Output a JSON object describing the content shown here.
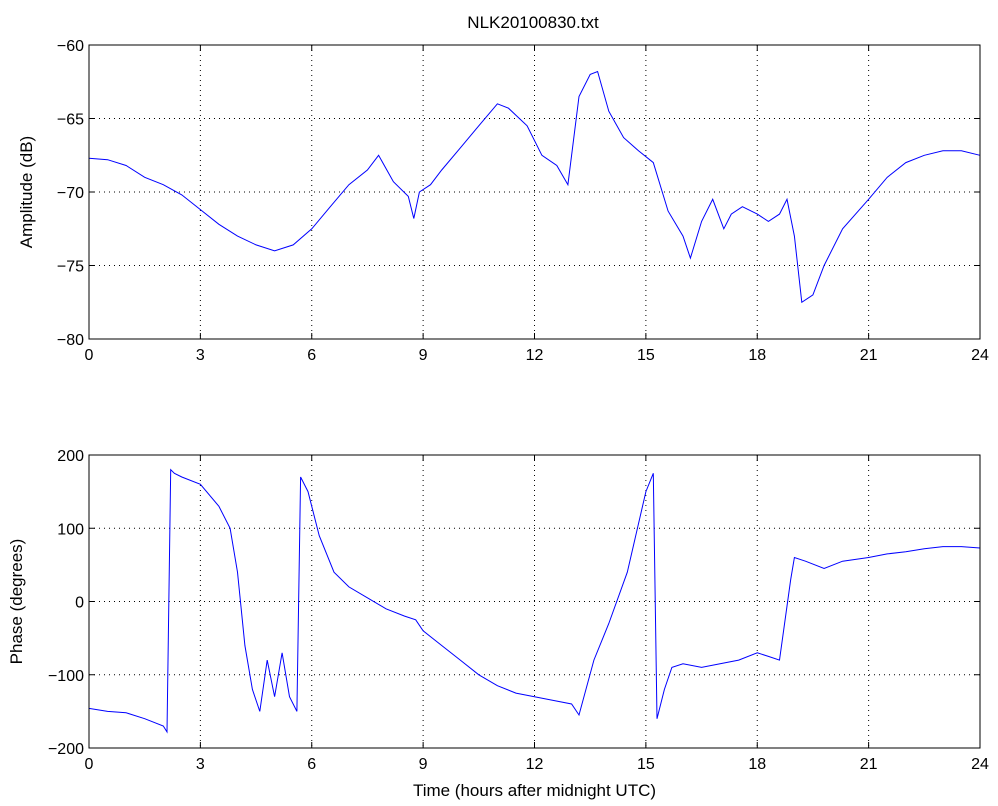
{
  "title": "NLK20100830.txt",
  "colors": {
    "series": "#0000ff",
    "axes": "#000000",
    "grid": "#000000",
    "background": "#ffffff"
  },
  "chart_data": [
    {
      "type": "line",
      "title": "NLK20100830.txt",
      "xlabel": "",
      "ylabel": "Amplitude (dB)",
      "xlim": [
        0,
        24
      ],
      "ylim": [
        -80,
        -60
      ],
      "xticks": [
        0,
        3,
        6,
        9,
        12,
        15,
        18,
        21,
        24
      ],
      "yticks": [
        -80,
        -75,
        -70,
        -65,
        -60
      ],
      "grid": true,
      "series": [
        {
          "x": [
            0,
            0.5,
            1,
            1.5,
            2,
            2.5,
            3,
            3.5,
            4,
            4.5,
            5,
            5.5,
            6,
            6.5,
            7,
            7.5,
            7.8,
            8.2,
            8.6,
            8.75,
            8.9,
            9.2,
            9.5,
            10,
            10.5,
            11,
            11.3,
            11.8,
            12.2,
            12.6,
            12.9,
            13.2,
            13.5,
            13.7,
            14,
            14.4,
            14.8,
            15.2,
            15.6,
            16,
            16.2,
            16.5,
            16.8,
            17.1,
            17.3,
            17.6,
            18,
            18.3,
            18.6,
            18.8,
            19.0,
            19.2,
            19.5,
            19.8,
            20.3,
            21,
            21.5,
            22,
            22.5,
            23,
            23.5,
            24
          ],
          "y": [
            -67.7,
            -67.8,
            -68.2,
            -69.0,
            -69.5,
            -70.2,
            -71.2,
            -72.2,
            -73.0,
            -73.6,
            -74.0,
            -73.6,
            -72.5,
            -71.0,
            -69.5,
            -68.5,
            -67.5,
            -69.3,
            -70.3,
            -71.8,
            -70.0,
            -69.5,
            -68.5,
            -67.0,
            -65.5,
            -64.0,
            -64.3,
            -65.5,
            -67.5,
            -68.2,
            -69.5,
            -63.5,
            -62.0,
            -61.8,
            -64.5,
            -66.3,
            -67.2,
            -68.0,
            -71.3,
            -73.0,
            -74.5,
            -72.0,
            -70.5,
            -72.5,
            -71.5,
            -71.0,
            -71.5,
            -72.0,
            -71.5,
            -70.5,
            -73.0,
            -77.5,
            -77.0,
            -75.0,
            -72.5,
            -70.5,
            -69.0,
            -68.0,
            -67.5,
            -67.2,
            -67.2,
            -67.5
          ]
        }
      ]
    },
    {
      "type": "line",
      "title": "",
      "xlabel": "Time (hours after midnight UTC)",
      "ylabel": "Phase (degrees)",
      "xlim": [
        0,
        24
      ],
      "ylim": [
        -200,
        200
      ],
      "xticks": [
        0,
        3,
        6,
        9,
        12,
        15,
        18,
        21,
        24
      ],
      "yticks": [
        -200,
        -100,
        0,
        100,
        200
      ],
      "grid": true,
      "series": [
        {
          "x": [
            0,
            0.5,
            1,
            1.5,
            2,
            2.1,
            2.2,
            2.3,
            2.5,
            3,
            3.5,
            3.8,
            4.0,
            4.2,
            4.4,
            4.6,
            4.8,
            5.0,
            5.2,
            5.4,
            5.6,
            5.7,
            5.9,
            6.2,
            6.6,
            7,
            7.5,
            8,
            8.5,
            8.8,
            9.0,
            9.5,
            10,
            10.5,
            11,
            11.5,
            12,
            12.5,
            13,
            13.2,
            13.6,
            14,
            14.5,
            15,
            15.2,
            15.3,
            15.5,
            15.7,
            16,
            16.5,
            17,
            17.5,
            18,
            18.3,
            18.6,
            18.9,
            19.0,
            19.3,
            19.8,
            20.3,
            21,
            21.5,
            22,
            22.5,
            23,
            23.5,
            24
          ],
          "y": [
            -146,
            -150,
            -152,
            -160,
            -170,
            -178,
            180,
            175,
            170,
            160,
            130,
            100,
            40,
            -60,
            -120,
            -150,
            -80,
            -130,
            -70,
            -130,
            -150,
            170,
            150,
            90,
            40,
            20,
            5,
            -10,
            -20,
            -25,
            -40,
            -60,
            -80,
            -100,
            -115,
            -125,
            -130,
            -135,
            -140,
            -155,
            -80,
            -30,
            40,
            150,
            175,
            -160,
            -120,
            -90,
            -85,
            -90,
            -85,
            -80,
            -70,
            -75,
            -80,
            30,
            60,
            55,
            45,
            55,
            60,
            65,
            68,
            72,
            75,
            75,
            73
          ]
        }
      ]
    }
  ]
}
